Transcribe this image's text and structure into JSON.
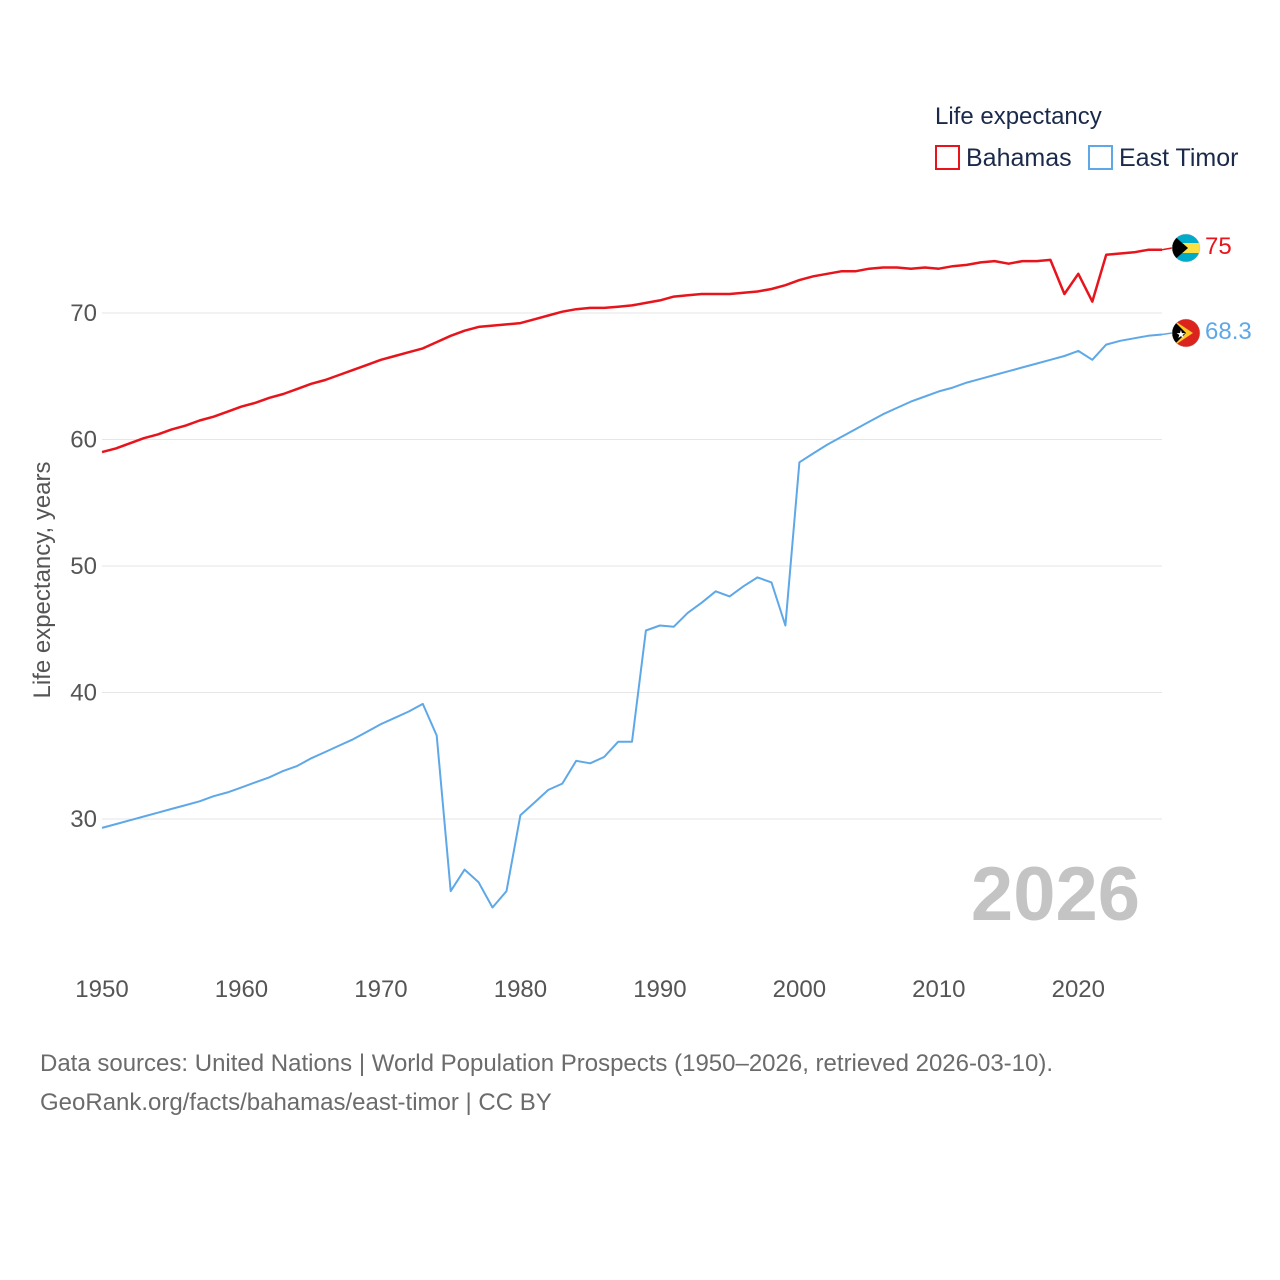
{
  "chart_data": {
    "type": "line",
    "legend_title": "Life expectancy",
    "legend_position": "top-right",
    "ylabel": "Life expectancy, years",
    "xlabel": "",
    "xlim": [
      1950,
      2026
    ],
    "ylim": [
      20,
      75
    ],
    "x_ticks": [
      1950,
      1960,
      1970,
      1980,
      1990,
      2000,
      2010,
      2020
    ],
    "y_ticks": [
      30,
      40,
      50,
      60,
      70
    ],
    "grid": true,
    "year_stamp": "2026",
    "series": [
      {
        "name": "Bahamas",
        "color": "#e8141c",
        "end_label": "75",
        "flag_icon": "bahamas-flag-icon",
        "x": [
          1950,
          1951,
          1952,
          1953,
          1954,
          1955,
          1956,
          1957,
          1958,
          1959,
          1960,
          1961,
          1962,
          1963,
          1964,
          1965,
          1966,
          1967,
          1968,
          1969,
          1970,
          1971,
          1972,
          1973,
          1974,
          1975,
          1976,
          1977,
          1978,
          1979,
          1980,
          1981,
          1982,
          1983,
          1984,
          1985,
          1986,
          1987,
          1988,
          1989,
          1990,
          1991,
          1992,
          1993,
          1994,
          1995,
          1996,
          1997,
          1998,
          1999,
          2000,
          2001,
          2002,
          2003,
          2004,
          2005,
          2006,
          2007,
          2008,
          2009,
          2010,
          2011,
          2012,
          2013,
          2014,
          2015,
          2016,
          2017,
          2018,
          2019,
          2020,
          2021,
          2022,
          2023,
          2024,
          2025,
          2026
        ],
        "values": [
          59.0,
          59.3,
          59.7,
          60.1,
          60.4,
          60.8,
          61.1,
          61.5,
          61.8,
          62.2,
          62.6,
          62.9,
          63.3,
          63.6,
          64.0,
          64.4,
          64.7,
          65.1,
          65.5,
          65.9,
          66.3,
          66.6,
          66.9,
          67.2,
          67.7,
          68.2,
          68.6,
          68.9,
          69.0,
          69.1,
          69.2,
          69.5,
          69.8,
          70.1,
          70.3,
          70.4,
          70.4,
          70.5,
          70.6,
          70.8,
          71.0,
          71.3,
          71.4,
          71.5,
          71.5,
          71.5,
          71.6,
          71.7,
          71.9,
          72.2,
          72.6,
          72.9,
          73.1,
          73.3,
          73.3,
          73.5,
          73.6,
          73.6,
          73.5,
          73.6,
          73.5,
          73.7,
          73.8,
          74.0,
          74.1,
          73.9,
          74.1,
          74.1,
          74.2,
          71.5,
          73.1,
          70.9,
          74.6,
          74.7,
          74.8,
          75.0,
          75.0
        ]
      },
      {
        "name": "East Timor",
        "color": "#5ea8e8",
        "end_label": "68.3",
        "flag_icon": "east-timor-flag-icon",
        "x": [
          1950,
          1951,
          1952,
          1953,
          1954,
          1955,
          1956,
          1957,
          1958,
          1959,
          1960,
          1961,
          1962,
          1963,
          1964,
          1965,
          1966,
          1967,
          1968,
          1969,
          1970,
          1971,
          1972,
          1973,
          1974,
          1975,
          1976,
          1977,
          1978,
          1979,
          1980,
          1981,
          1982,
          1983,
          1984,
          1985,
          1986,
          1987,
          1988,
          1989,
          1990,
          1991,
          1992,
          1993,
          1994,
          1995,
          1996,
          1997,
          1998,
          1999,
          2000,
          2001,
          2002,
          2003,
          2004,
          2005,
          2006,
          2007,
          2008,
          2009,
          2010,
          2011,
          2012,
          2013,
          2014,
          2015,
          2016,
          2017,
          2018,
          2019,
          2020,
          2021,
          2022,
          2023,
          2024,
          2025,
          2026
        ],
        "values": [
          29.3,
          29.6,
          29.9,
          30.2,
          30.5,
          30.8,
          31.1,
          31.4,
          31.8,
          32.1,
          32.5,
          32.9,
          33.3,
          33.8,
          34.2,
          34.8,
          35.3,
          35.8,
          36.3,
          36.9,
          37.5,
          38.0,
          38.5,
          39.1,
          36.6,
          24.3,
          26.0,
          25.0,
          23.0,
          24.3,
          30.3,
          31.3,
          32.3,
          32.8,
          34.6,
          34.4,
          34.9,
          36.1,
          36.1,
          44.9,
          45.3,
          45.2,
          46.3,
          47.1,
          48.0,
          47.6,
          48.4,
          49.1,
          48.7,
          45.3,
          58.2,
          58.9,
          59.6,
          60.2,
          60.8,
          61.4,
          62.0,
          62.5,
          63.0,
          63.4,
          63.8,
          64.1,
          64.5,
          64.8,
          65.1,
          65.4,
          65.7,
          66.0,
          66.3,
          66.6,
          67.0,
          66.3,
          67.5,
          67.8,
          68.0,
          68.2,
          68.3
        ]
      }
    ]
  },
  "footer": {
    "source_line": "Data sources: United Nations | World Population Prospects (1950–2026, retrieved 2026-03-10).",
    "attribution_line": "GeoRank.org/facts/bahamas/east-timor | CC BY"
  }
}
